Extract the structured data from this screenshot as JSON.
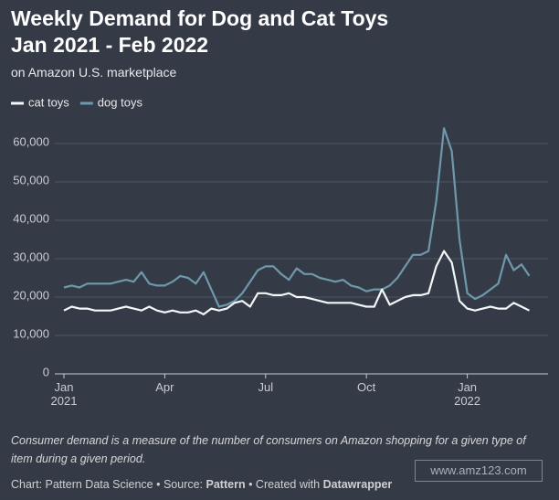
{
  "chart_data": {
    "type": "line",
    "title": [
      "Weekly Demand for Dog and Cat Toys",
      "Jan 2021 - Feb 2022"
    ],
    "subtitle": "on Amazon U.S. marketplace",
    "x": [
      0,
      1,
      2,
      3,
      4,
      5,
      6,
      7,
      8,
      9,
      10,
      11,
      12,
      13,
      14,
      15,
      16,
      17,
      18,
      19,
      20,
      21,
      22,
      23,
      24,
      25,
      26,
      27,
      28,
      29,
      30,
      31,
      32,
      33,
      34,
      35,
      36,
      37,
      38,
      39,
      40,
      41,
      42,
      43,
      44,
      45,
      46,
      47,
      48,
      49,
      50,
      51,
      52,
      53,
      54,
      55,
      56,
      57,
      58,
      59,
      60
    ],
    "xlim": [
      0,
      61
    ],
    "xticks": [
      {
        "value": 0,
        "label": "Jan 2021"
      },
      {
        "value": 13,
        "label": "Apr"
      },
      {
        "value": 26,
        "label": "Jul"
      },
      {
        "value": 39,
        "label": "Oct"
      },
      {
        "value": 52,
        "label": "Jan 2022"
      }
    ],
    "ylim": [
      0,
      65000
    ],
    "yticks": [
      0,
      {
        "value": 10000,
        "label": "10,000"
      },
      {
        "value": 20000,
        "label": "20,000"
      },
      {
        "value": 30000,
        "label": "30,000"
      },
      {
        "value": 40000,
        "label": "40,000"
      },
      {
        "value": 50000,
        "label": "50,000"
      },
      {
        "value": 60000,
        "label": "60,000"
      }
    ],
    "grid": true,
    "legend": "top-left",
    "series": [
      {
        "name": "cat toys",
        "color": "#f2f7f8",
        "values": [
          16500,
          17500,
          17000,
          17000,
          16500,
          16500,
          16500,
          17000,
          17500,
          17000,
          16500,
          17500,
          16500,
          16000,
          16500,
          16000,
          16000,
          16500,
          15500,
          17000,
          16500,
          17000,
          18500,
          19000,
          17500,
          21000,
          21000,
          20500,
          20500,
          21000,
          20000,
          20000,
          19500,
          19000,
          18500,
          18500,
          18500,
          18500,
          18000,
          17500,
          17500,
          22000,
          18000,
          19000,
          20000,
          20500,
          20500,
          21000,
          28000,
          32000,
          29000,
          19000,
          17000,
          16500,
          17000,
          17500,
          17000,
          17000,
          18500,
          17500,
          16500
        ]
      },
      {
        "name": "dog toys",
        "color": "#6e99ab",
        "values": [
          22500,
          23000,
          22500,
          23500,
          23500,
          23500,
          23500,
          24000,
          24500,
          24000,
          26500,
          23500,
          23000,
          23000,
          24000,
          25500,
          25000,
          23500,
          26500,
          22000,
          17500,
          18000,
          19000,
          21000,
          24000,
          27000,
          28000,
          28000,
          26000,
          24500,
          27500,
          26000,
          26000,
          25000,
          24500,
          24000,
          24500,
          23000,
          22500,
          21500,
          22000,
          22000,
          23000,
          25000,
          28000,
          31000,
          31000,
          32000,
          45000,
          64000,
          58000,
          35000,
          21000,
          19500,
          20500,
          22000,
          23500,
          31000,
          27000,
          28500,
          25500
        ]
      }
    ],
    "notes": "Consumer demand is a measure of the number of consumers on Amazon shopping for a given type of item during a given period.",
    "footer": [
      "Chart: Pattern Data Science • Source: ",
      "Pattern",
      " • Created with ",
      "Datawrapper"
    ],
    "watermark": "www.amz123.com"
  }
}
